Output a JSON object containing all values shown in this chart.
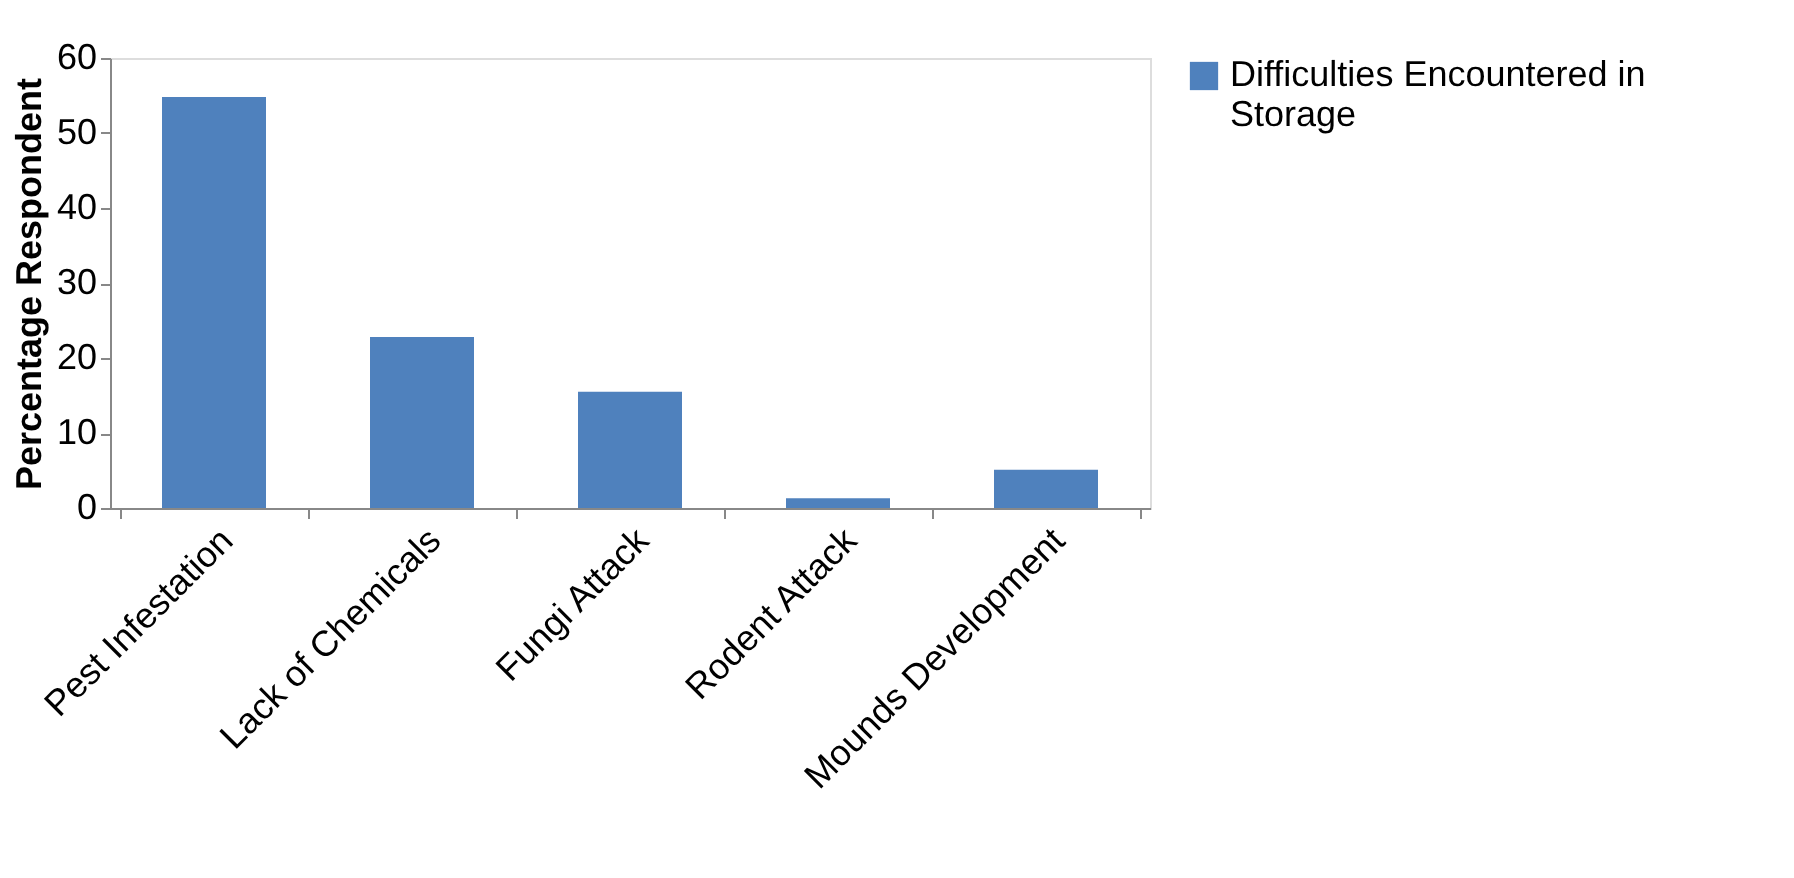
{
  "chart_data": {
    "type": "bar",
    "ylabel": "Percentage Respondent",
    "categories": [
      "Pest Infestation",
      "Lack of Chemicals",
      "Fungi Attack",
      "Rodent Attack",
      "Mounds Development"
    ],
    "series": [
      {
        "name": "Difficulties Encountered in Storage",
        "color": "#4f81bd",
        "values": [
          54.8,
          22.8,
          15.5,
          1.3,
          5.1
        ]
      }
    ],
    "ylim": [
      0,
      60
    ],
    "yticks": [
      0,
      10,
      20,
      30,
      40,
      50,
      60
    ],
    "grid": false,
    "legend": "right"
  }
}
